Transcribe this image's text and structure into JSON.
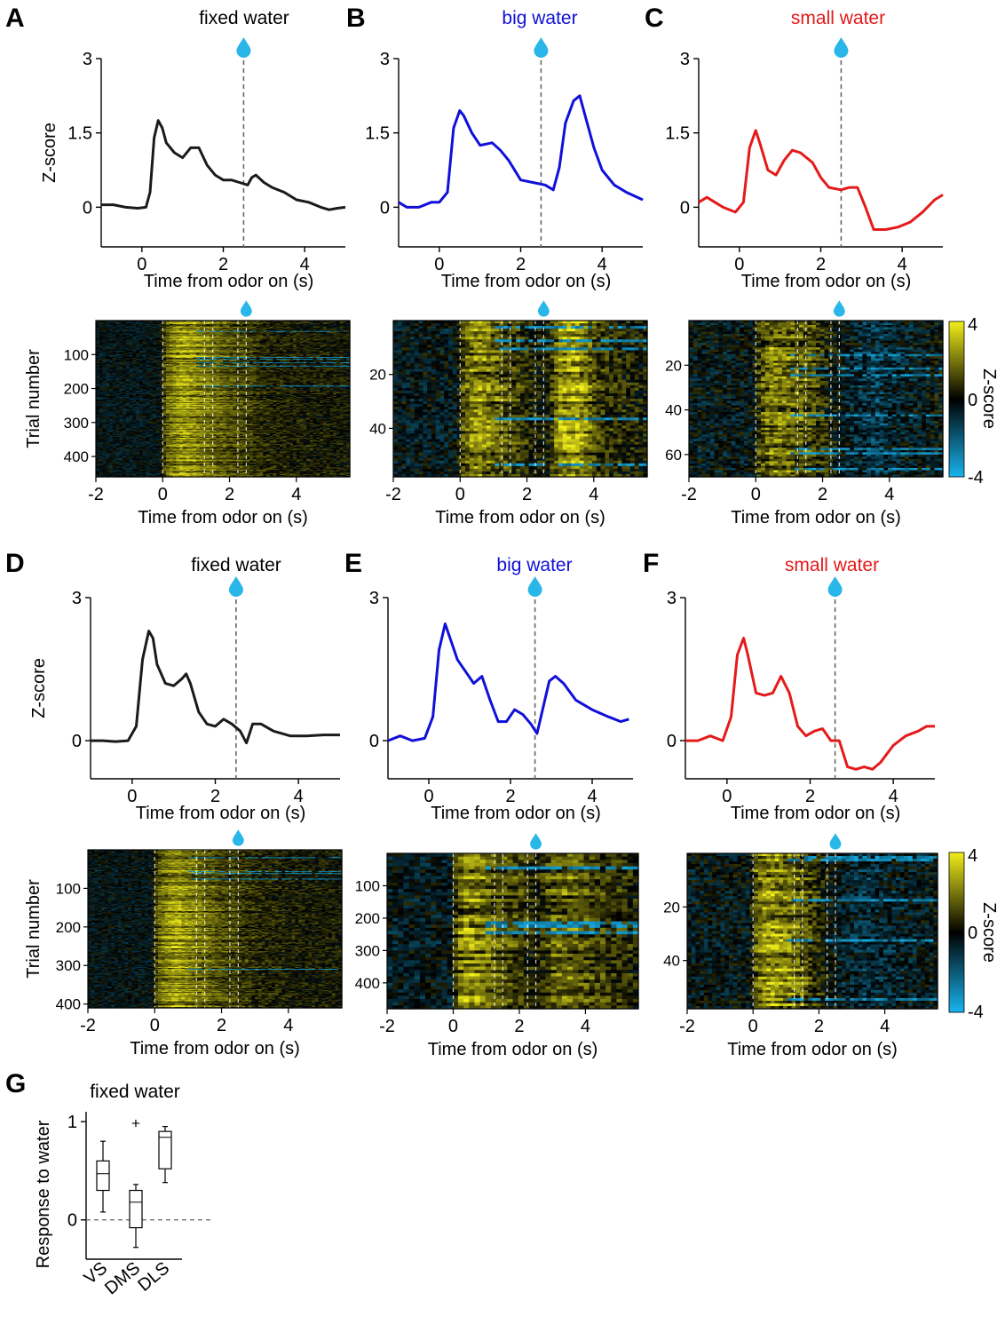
{
  "colors": {
    "fixed": "#1a1a1a",
    "big": "#1010d8",
    "small": "#e41a1a",
    "drop": "#29b6e8",
    "hm_pos": "#f2ee1a",
    "hm_neg": "#18b4ee"
  },
  "chart_data": {
    "type": "multi-panel",
    "panels": [
      {
        "label": "A",
        "title": "fixed water",
        "color": "fixed",
        "line": {
          "type": "line",
          "xlabel": "Time from odor on (s)",
          "ylabel": "Z-score",
          "xlim": [
            -1,
            5
          ],
          "ylim": [
            -0.8,
            3
          ],
          "xticks": [
            0,
            2,
            4
          ],
          "yticks": [
            0,
            1.5,
            3
          ],
          "ytick_labels": [
            "0",
            "1.5",
            "3"
          ],
          "water_time": 2.5,
          "x": [
            -1,
            -0.7,
            -0.4,
            -0.1,
            0.1,
            0.2,
            0.3,
            0.4,
            0.5,
            0.6,
            0.8,
            1.0,
            1.2,
            1.4,
            1.6,
            1.8,
            2.0,
            2.2,
            2.4,
            2.6,
            2.7,
            2.8,
            3.0,
            3.2,
            3.5,
            3.8,
            4.1,
            4.4,
            4.6,
            4.8,
            5.0
          ],
          "y": [
            0.05,
            0.05,
            0.0,
            -0.02,
            0.0,
            0.3,
            1.4,
            1.75,
            1.6,
            1.3,
            1.1,
            1.0,
            1.2,
            1.2,
            0.85,
            0.65,
            0.55,
            0.55,
            0.5,
            0.45,
            0.6,
            0.65,
            0.5,
            0.4,
            0.3,
            0.15,
            0.1,
            0.0,
            -0.05,
            -0.02,
            0.0
          ]
        },
        "heatmap": {
          "type": "heatmap",
          "xlabel": "Time from odor on (s)",
          "ylabel": "Trial number",
          "xlim": [
            -2,
            5.6
          ],
          "xticks": [
            -2,
            0,
            2,
            4
          ],
          "yticks": [
            100,
            200,
            300,
            400
          ],
          "n_trials": 460,
          "stripe_rows": 180,
          "n_cols": 76,
          "marker_times": [
            0,
            1.25,
            1.5,
            2.25,
            2.5
          ],
          "profile": [
            [
              -2,
              -0.3
            ],
            [
              -0.1,
              -0.3
            ],
            [
              0.1,
              1.5
            ],
            [
              0.6,
              2.6
            ],
            [
              1.3,
              1.9
            ],
            [
              2.0,
              1.3
            ],
            [
              2.5,
              1.1
            ],
            [
              3.0,
              0.6
            ],
            [
              4.0,
              0.4
            ],
            [
              5.6,
              0.3
            ]
          ],
          "noise": 0.9,
          "n_blue_lines": 6
        }
      },
      {
        "label": "B",
        "title": "big water",
        "color": "big",
        "line": {
          "type": "line",
          "xlabel": "Time from odor on (s)",
          "ylabel": "",
          "xlim": [
            -1,
            5
          ],
          "ylim": [
            -0.8,
            3
          ],
          "xticks": [
            0,
            2,
            4
          ],
          "yticks": [
            0,
            1.5,
            3
          ],
          "ytick_labels": [
            "0",
            "1.5",
            "3"
          ],
          "water_time": 2.5,
          "x": [
            -1,
            -0.8,
            -0.5,
            -0.2,
            0.0,
            0.2,
            0.35,
            0.5,
            0.6,
            0.8,
            1.0,
            1.3,
            1.5,
            1.7,
            2.0,
            2.3,
            2.6,
            2.8,
            2.95,
            3.1,
            3.3,
            3.45,
            3.6,
            3.8,
            4.0,
            4.3,
            4.6,
            5.0
          ],
          "y": [
            0.1,
            0.0,
            0.0,
            0.1,
            0.1,
            0.3,
            1.6,
            1.95,
            1.85,
            1.5,
            1.25,
            1.3,
            1.15,
            0.95,
            0.55,
            0.5,
            0.45,
            0.35,
            0.8,
            1.7,
            2.15,
            2.25,
            1.8,
            1.2,
            0.75,
            0.45,
            0.3,
            0.15
          ]
        },
        "heatmap": {
          "type": "heatmap",
          "xlabel": "Time from odor on (s)",
          "ylabel": "",
          "xlim": [
            -2,
            5.6
          ],
          "xticks": [
            -2,
            0,
            2,
            4
          ],
          "yticks": [
            20,
            40
          ],
          "n_trials": 58,
          "stripe_rows": 58,
          "n_cols": 60,
          "marker_times": [
            0,
            1.25,
            1.5,
            2.25,
            2.5
          ],
          "profile": [
            [
              -2,
              -0.3
            ],
            [
              -0.1,
              -0.3
            ],
            [
              0.1,
              1.2
            ],
            [
              0.5,
              2.3
            ],
            [
              1.0,
              1.6
            ],
            [
              2.0,
              0.5
            ],
            [
              2.6,
              0.2
            ],
            [
              3.0,
              2.3
            ],
            [
              3.5,
              2.6
            ],
            [
              4.2,
              0.8
            ],
            [
              5.6,
              0.2
            ]
          ],
          "noise": 1.1,
          "n_blue_lines": 5
        }
      },
      {
        "label": "C",
        "title": "small water",
        "color": "small",
        "line": {
          "type": "line",
          "xlabel": "Time from odor on (s)",
          "ylabel": "",
          "xlim": [
            -1,
            5
          ],
          "ylim": [
            -0.8,
            3
          ],
          "xticks": [
            0,
            2,
            4
          ],
          "yticks": [
            0,
            1.5,
            3
          ],
          "ytick_labels": [
            "0",
            "1.5",
            "3"
          ],
          "water_time": 2.5,
          "x": [
            -1,
            -0.8,
            -0.6,
            -0.4,
            -0.1,
            0.1,
            0.25,
            0.4,
            0.5,
            0.7,
            0.9,
            1.1,
            1.3,
            1.5,
            1.8,
            2.0,
            2.2,
            2.5,
            2.7,
            2.9,
            3.1,
            3.3,
            3.6,
            3.9,
            4.2,
            4.5,
            4.8,
            5.0
          ],
          "y": [
            0.1,
            0.2,
            0.1,
            0.0,
            -0.1,
            0.1,
            1.2,
            1.55,
            1.3,
            0.75,
            0.65,
            0.95,
            1.15,
            1.1,
            0.9,
            0.6,
            0.4,
            0.35,
            0.4,
            0.4,
            0.0,
            -0.45,
            -0.45,
            -0.4,
            -0.3,
            -0.1,
            0.15,
            0.25
          ]
        },
        "heatmap": {
          "type": "heatmap",
          "xlabel": "Time from odor on (s)",
          "ylabel": "",
          "xlim": [
            -2,
            5.6
          ],
          "xticks": [
            -2,
            0,
            2,
            4
          ],
          "yticks": [
            20,
            40,
            60
          ],
          "n_trials": 70,
          "stripe_rows": 70,
          "n_cols": 60,
          "marker_times": [
            0,
            1.25,
            1.5,
            2.25,
            2.5
          ],
          "profile": [
            [
              -2,
              -0.3
            ],
            [
              -0.1,
              -0.3
            ],
            [
              0.1,
              1.1
            ],
            [
              0.5,
              1.9
            ],
            [
              1.5,
              1.4
            ],
            [
              2.2,
              0.4
            ],
            [
              2.8,
              -0.6
            ],
            [
              3.6,
              -1.1
            ],
            [
              4.5,
              -0.5
            ],
            [
              5.6,
              0.0
            ]
          ],
          "noise": 1.2,
          "n_blue_lines": 7
        },
        "colorbar": {
          "label": "Z-score",
          "min": -4,
          "max": 4,
          "ticks": [
            4,
            0,
            -4
          ]
        }
      },
      {
        "label": "D",
        "title": "fixed water",
        "color": "fixed",
        "line": {
          "type": "line",
          "xlabel": "Time from odor on (s)",
          "ylabel": "Z-score",
          "xlim": [
            -1,
            5
          ],
          "ylim": [
            -0.8,
            3
          ],
          "xticks": [
            0,
            2,
            4
          ],
          "yticks": [
            0,
            3
          ],
          "ytick_labels": [
            "0",
            "3"
          ],
          "water_time": 2.5,
          "x": [
            -1,
            -0.7,
            -0.4,
            -0.1,
            0.1,
            0.25,
            0.4,
            0.5,
            0.6,
            0.8,
            1.0,
            1.2,
            1.3,
            1.4,
            1.6,
            1.8,
            2.0,
            2.2,
            2.4,
            2.6,
            2.75,
            2.9,
            3.1,
            3.4,
            3.8,
            4.2,
            4.6,
            5.0
          ],
          "y": [
            0.0,
            0.0,
            -0.02,
            0.0,
            0.3,
            1.7,
            2.3,
            2.15,
            1.6,
            1.2,
            1.15,
            1.3,
            1.4,
            1.2,
            0.6,
            0.35,
            0.3,
            0.45,
            0.35,
            0.2,
            -0.05,
            0.35,
            0.35,
            0.2,
            0.1,
            0.1,
            0.12,
            0.12
          ]
        },
        "heatmap": {
          "type": "heatmap",
          "xlabel": "Time from odor on (s)",
          "ylabel": "Trial number",
          "xlim": [
            -2,
            5.6
          ],
          "xticks": [
            -2,
            0,
            2,
            4
          ],
          "yticks": [
            100,
            200,
            300,
            400
          ],
          "n_trials": 410,
          "stripe_rows": 170,
          "n_cols": 76,
          "marker_times": [
            0,
            1.25,
            1.5,
            2.25,
            2.5
          ],
          "profile": [
            [
              -2,
              -0.3
            ],
            [
              -0.1,
              -0.3
            ],
            [
              0.1,
              1.6
            ],
            [
              0.6,
              2.6
            ],
            [
              1.3,
              1.9
            ],
            [
              2.0,
              1.2
            ],
            [
              2.6,
              0.9
            ],
            [
              3.2,
              0.6
            ],
            [
              4.0,
              0.4
            ],
            [
              5.6,
              0.3
            ]
          ],
          "noise": 0.9,
          "n_blue_lines": 5
        }
      },
      {
        "label": "E",
        "title": "big water",
        "color": "big",
        "line": {
          "type": "line",
          "xlabel": "Time from odor on (s)",
          "ylabel": "",
          "xlim": [
            -1,
            5
          ],
          "ylim": [
            -0.8,
            3
          ],
          "xticks": [
            0,
            2,
            4
          ],
          "yticks": [
            0,
            3
          ],
          "ytick_labels": [
            "0",
            "3"
          ],
          "water_time": 2.6,
          "x": [
            -1,
            -0.7,
            -0.4,
            -0.1,
            0.1,
            0.25,
            0.4,
            0.5,
            0.7,
            0.9,
            1.1,
            1.3,
            1.5,
            1.7,
            1.9,
            2.1,
            2.3,
            2.5,
            2.65,
            2.8,
            2.95,
            3.1,
            3.3,
            3.6,
            4.0,
            4.4,
            4.7,
            4.9
          ],
          "y": [
            0.0,
            0.1,
            0.0,
            0.05,
            0.5,
            1.9,
            2.45,
            2.2,
            1.7,
            1.45,
            1.2,
            1.35,
            0.85,
            0.4,
            0.4,
            0.65,
            0.55,
            0.35,
            0.15,
            0.7,
            1.25,
            1.35,
            1.2,
            0.85,
            0.65,
            0.5,
            0.4,
            0.45
          ]
        },
        "heatmap": {
          "type": "heatmap",
          "xlabel": "Time from odor on (s)",
          "ylabel": "",
          "xlim": [
            -2,
            5.6
          ],
          "xticks": [
            -2,
            0,
            2,
            4
          ],
          "yticks": [
            100,
            200,
            300,
            400
          ],
          "n_trials": 480,
          "stripe_rows": 48,
          "n_cols": 46,
          "marker_times": [
            0,
            1.25,
            1.5,
            2.25,
            2.5
          ],
          "profile": [
            [
              -2,
              -0.5
            ],
            [
              -0.1,
              -0.4
            ],
            [
              0.1,
              1.3
            ],
            [
              0.4,
              2.4
            ],
            [
              1.2,
              1.7
            ],
            [
              2.0,
              1.0
            ],
            [
              2.6,
              0.4
            ],
            [
              3.0,
              1.5
            ],
            [
              3.5,
              1.7
            ],
            [
              4.5,
              0.9
            ],
            [
              5.6,
              0.5
            ]
          ],
          "noise": 1.0,
          "n_blue_lines": 4
        }
      },
      {
        "label": "F",
        "title": "small water",
        "color": "small",
        "line": {
          "type": "line",
          "xlabel": "Time from odor on (s)",
          "ylabel": "",
          "xlim": [
            -1,
            5
          ],
          "ylim": [
            -0.8,
            3
          ],
          "xticks": [
            0,
            2,
            4
          ],
          "yticks": [
            0,
            3
          ],
          "ytick_labels": [
            "0",
            "3"
          ],
          "water_time": 2.6,
          "x": [
            -1,
            -0.7,
            -0.4,
            -0.1,
            0.1,
            0.25,
            0.4,
            0.5,
            0.7,
            0.9,
            1.1,
            1.3,
            1.5,
            1.7,
            1.9,
            2.1,
            2.3,
            2.5,
            2.7,
            2.9,
            3.1,
            3.3,
            3.5,
            3.7,
            4.0,
            4.3,
            4.6,
            4.8,
            5.0
          ],
          "y": [
            0.0,
            0.0,
            0.1,
            0.0,
            0.5,
            1.8,
            2.15,
            1.8,
            1.0,
            0.95,
            1.0,
            1.35,
            1.0,
            0.3,
            0.1,
            0.2,
            0.25,
            0.0,
            0.0,
            -0.55,
            -0.6,
            -0.55,
            -0.6,
            -0.45,
            -0.1,
            0.1,
            0.2,
            0.3,
            0.3
          ]
        },
        "heatmap": {
          "type": "heatmap",
          "xlabel": "Time from odor on (s)",
          "ylabel": "",
          "xlim": [
            -2,
            5.6
          ],
          "xticks": [
            -2,
            0,
            2,
            4
          ],
          "yticks": [
            20,
            40
          ],
          "n_trials": 58,
          "stripe_rows": 58,
          "n_cols": 60,
          "marker_times": [
            0,
            1.25,
            1.5,
            2.25,
            2.5
          ],
          "profile": [
            [
              -2,
              -0.3
            ],
            [
              -0.1,
              -0.3
            ],
            [
              0.1,
              1.6
            ],
            [
              0.5,
              2.4
            ],
            [
              1.3,
              1.8
            ],
            [
              2.0,
              0.6
            ],
            [
              2.6,
              -0.5
            ],
            [
              3.4,
              -0.9
            ],
            [
              4.6,
              -0.5
            ],
            [
              5.6,
              -0.2
            ]
          ],
          "noise": 1.1,
          "n_blue_lines": 5
        },
        "colorbar": {
          "label": "Z-score",
          "min": -4,
          "max": 4,
          "ticks": [
            4,
            0,
            -4
          ]
        }
      }
    ],
    "boxplot": {
      "label": "G",
      "type": "boxplot",
      "title": "fixed water",
      "ylabel": "Response to water",
      "ylim": [
        -0.4,
        1.1
      ],
      "yticks": [
        0,
        1
      ],
      "reference_line": 0,
      "categories": [
        "VS",
        "DMS",
        "DLS"
      ],
      "boxes": [
        {
          "name": "VS",
          "min": 0.08,
          "q1": 0.3,
          "median": 0.47,
          "q3": 0.6,
          "max": 0.8,
          "outliers": []
        },
        {
          "name": "DMS",
          "min": -0.28,
          "q1": -0.08,
          "median": 0.18,
          "q3": 0.3,
          "max": 0.36,
          "outliers": [
            0.98
          ]
        },
        {
          "name": "DLS",
          "min": 0.38,
          "q1": 0.52,
          "median": 0.84,
          "q3": 0.9,
          "max": 0.95,
          "outliers": []
        }
      ]
    }
  }
}
